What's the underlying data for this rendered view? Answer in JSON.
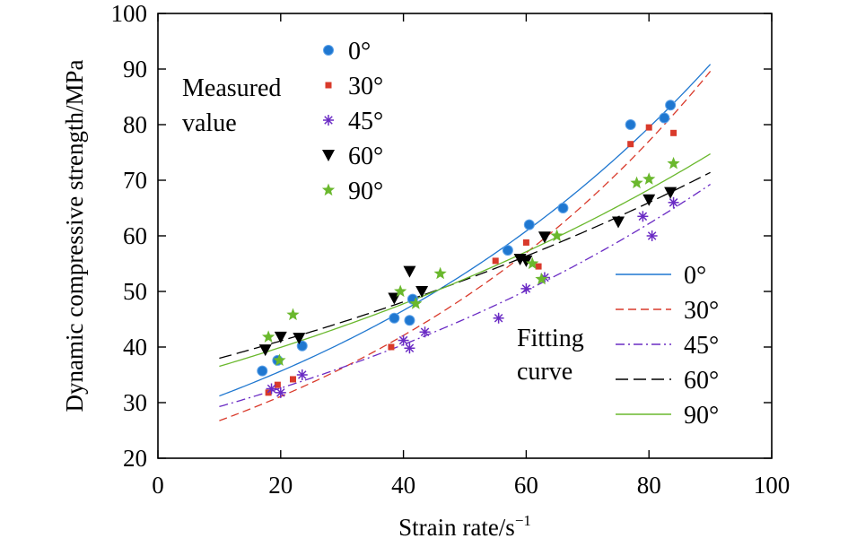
{
  "chart_data": {
    "type": "scatter",
    "xlabel": "Strain rate/s",
    "xlabel_sup": "−1",
    "ylabel": "Dynamic compressive strength/MPa",
    "xlim": [
      0,
      100
    ],
    "ylim": [
      20,
      100
    ],
    "xticks": [
      0,
      20,
      40,
      60,
      80,
      100
    ],
    "yticks": [
      20,
      30,
      40,
      50,
      60,
      70,
      80,
      90,
      100
    ],
    "grid": false,
    "legend_measured": {
      "title_line1": "Measured",
      "title_line2": "value",
      "placement": "top-left"
    },
    "legend_fitting": {
      "title_line1": "Fitting",
      "title_line2": "curve",
      "placement": "bottom-right"
    },
    "series": [
      {
        "name": "0°",
        "color": "#1f77d0",
        "marker": "circle",
        "line_style": "solid",
        "points": [
          [
            17,
            35.7
          ],
          [
            19.5,
            37.6
          ],
          [
            23.5,
            40.2
          ],
          [
            38.5,
            45.2
          ],
          [
            41,
            44.8
          ],
          [
            41.5,
            48.6
          ],
          [
            57,
            57.4
          ],
          [
            60.5,
            62
          ],
          [
            66,
            65
          ],
          [
            77,
            80
          ],
          [
            82.5,
            81.2
          ],
          [
            83.5,
            83.5
          ]
        ],
        "fit": {
          "a": 27.3,
          "b": 0.01336
        }
      },
      {
        "name": "30°",
        "color": "#d93a2b",
        "marker": "square",
        "line_style": "dashed",
        "points": [
          [
            18,
            31.8
          ],
          [
            19.5,
            33.2
          ],
          [
            22,
            34.2
          ],
          [
            38,
            40
          ],
          [
            55,
            55.5
          ],
          [
            60,
            58.8
          ],
          [
            62,
            54.5
          ],
          [
            77,
            76.5
          ],
          [
            80,
            79.5
          ],
          [
            84,
            78.5
          ]
        ],
        "fit": {
          "a": 23.0,
          "b": 0.01511
        }
      },
      {
        "name": "45°",
        "color": "#6a2bc4",
        "marker": "asterisk",
        "line_style": "dashdot",
        "points": [
          [
            18.5,
            32.5
          ],
          [
            20,
            31.8
          ],
          [
            23.5,
            35
          ],
          [
            40,
            41.2
          ],
          [
            41,
            39.8
          ],
          [
            43.5,
            42.7
          ],
          [
            55.5,
            45.2
          ],
          [
            60,
            50.5
          ],
          [
            63,
            52.5
          ],
          [
            79,
            63.5
          ],
          [
            80.5,
            60
          ],
          [
            84,
            66
          ]
        ],
        "fit": {
          "a": 26.3,
          "b": 0.01076
        }
      },
      {
        "name": "60°",
        "color": "#000000",
        "marker": "triangle-down",
        "line_style": "dashed-long",
        "points": [
          [
            17.5,
            39.5
          ],
          [
            20,
            41.8
          ],
          [
            23,
            41.6
          ],
          [
            38.5,
            48.8
          ],
          [
            41,
            53.6
          ],
          [
            43,
            50
          ],
          [
            59,
            55.8
          ],
          [
            60,
            55.5
          ],
          [
            63,
            59.8
          ],
          [
            75,
            62.5
          ],
          [
            80,
            66.5
          ],
          [
            83.5,
            67.8
          ]
        ],
        "fit": {
          "a": 35.1,
          "b": 0.00789
        }
      },
      {
        "name": "90°",
        "color": "#6ab82d",
        "marker": "star",
        "line_style": "solid",
        "points": [
          [
            18,
            41.8
          ],
          [
            19.8,
            37.6
          ],
          [
            22,
            45.8
          ],
          [
            39.5,
            50
          ],
          [
            42,
            47.8
          ],
          [
            46,
            53.2
          ],
          [
            61,
            55
          ],
          [
            62.5,
            52.2
          ],
          [
            65,
            60
          ],
          [
            78,
            69.5
          ],
          [
            80,
            70.2
          ],
          [
            84,
            73
          ]
        ],
        "fit": {
          "a": 33.4,
          "b": 0.00895
        }
      }
    ]
  }
}
